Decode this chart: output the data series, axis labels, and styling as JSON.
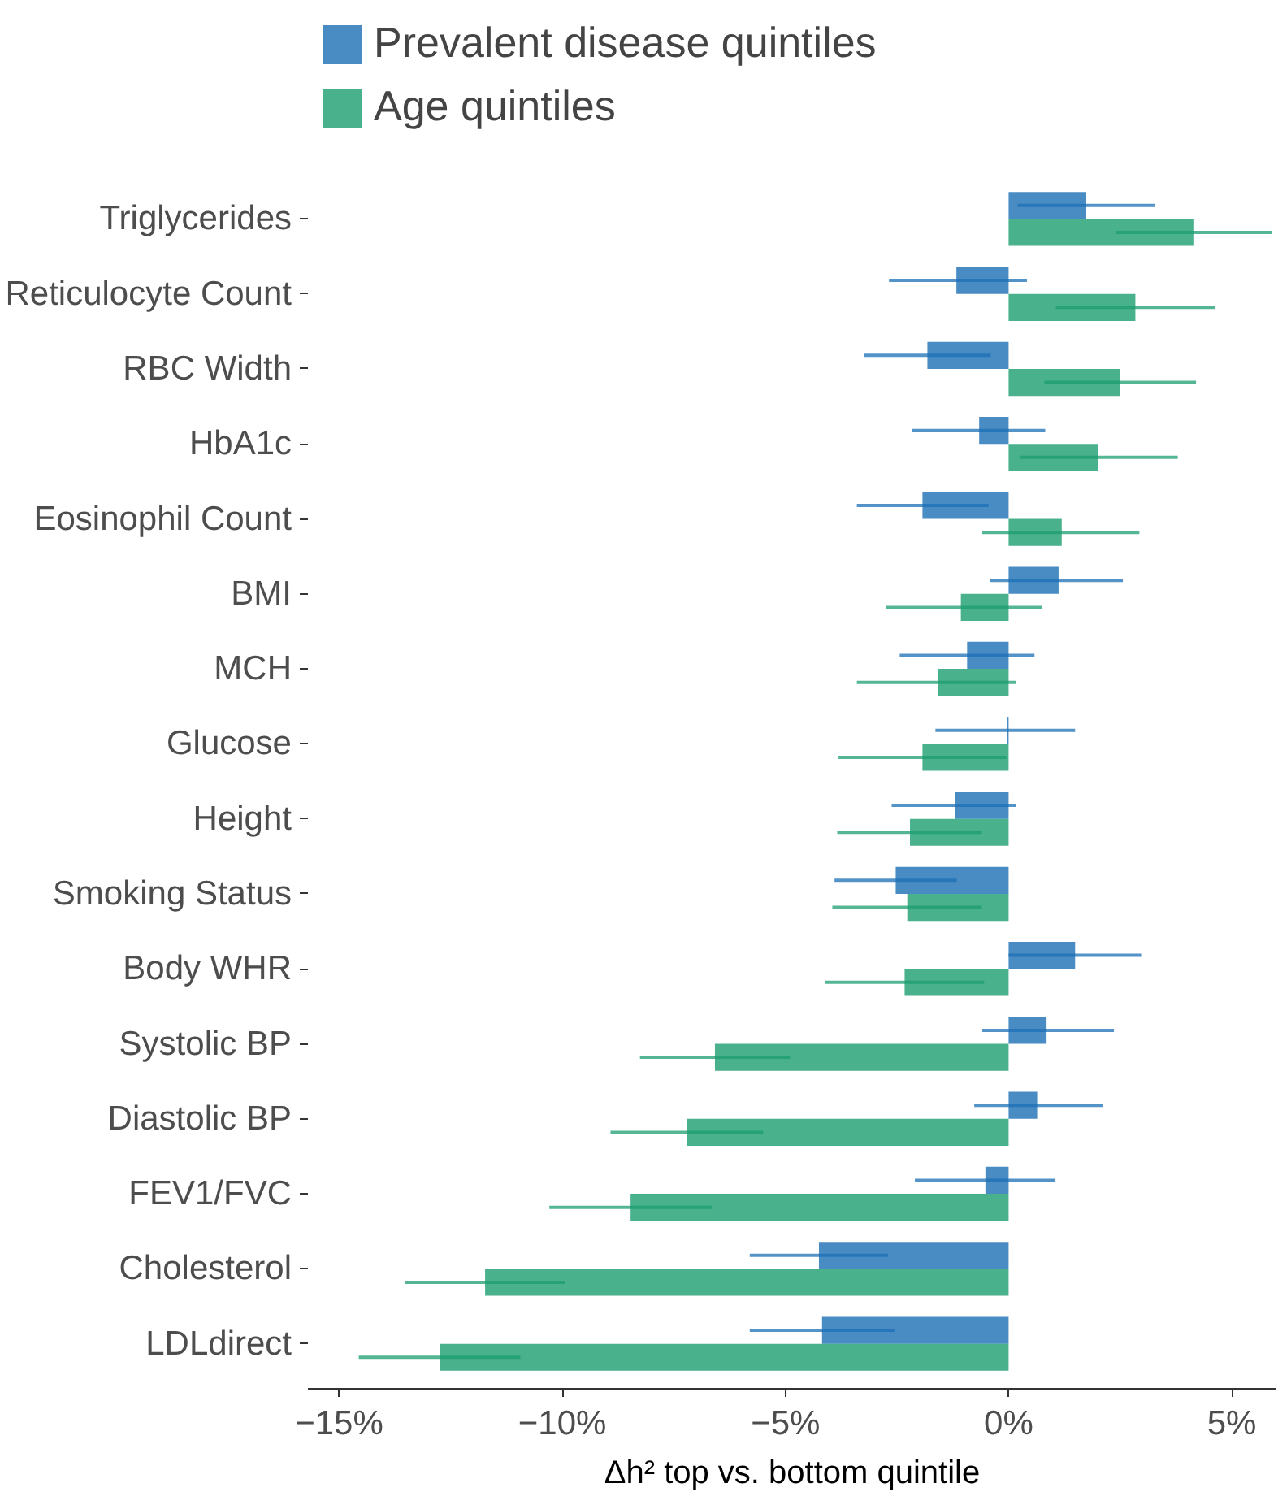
{
  "chart_data": {
    "type": "bar",
    "orientation": "horizontal",
    "xlabel": "Δh² top vs. bottom quintile",
    "categories": [
      "Triglycerides",
      "Reticulocyte Count",
      "RBC Width",
      "HbA1c",
      "Eosinophil Count",
      "BMI",
      "MCH",
      "Glucose",
      "Height",
      "Smoking Status",
      "Body WHR",
      "Systolic BP",
      "Diastolic BP",
      "FEV1/FVC",
      "Cholesterol",
      "LDLdirect"
    ],
    "series": [
      {
        "name": "Prevalent disease quintiles",
        "color": "#1b6fb5",
        "values": [
          1.74,
          -1.17,
          -1.82,
          -0.66,
          -1.93,
          1.12,
          -0.93,
          -0.04,
          -1.2,
          -2.53,
          1.49,
          0.85,
          0.64,
          -0.52,
          -4.25,
          -4.18
        ],
        "errors": [
          [
            0.2,
            3.27
          ],
          [
            -2.68,
            0.41
          ],
          [
            -3.23,
            -0.4
          ],
          [
            -2.17,
            0.82
          ],
          [
            -3.4,
            -0.45
          ],
          [
            -0.42,
            2.56
          ],
          [
            -2.44,
            0.58
          ],
          [
            -1.64,
            1.49
          ],
          [
            -2.62,
            0.16
          ],
          [
            -3.9,
            -1.16
          ],
          [
            0.0,
            2.97
          ],
          [
            -0.59,
            2.36
          ],
          [
            -0.77,
            2.12
          ],
          [
            -2.1,
            1.05
          ],
          [
            -5.8,
            -2.7
          ],
          [
            -5.8,
            -2.56
          ]
        ]
      },
      {
        "name": "Age quintiles",
        "color": "#1b9e6f",
        "values": [
          4.14,
          2.84,
          2.49,
          2.01,
          1.19,
          -1.07,
          -1.59,
          -1.93,
          -2.21,
          -2.27,
          -2.33,
          -6.58,
          -7.21,
          -8.47,
          -11.73,
          -12.75
        ],
        "errors": [
          [
            2.4,
            5.9
          ],
          [
            1.06,
            4.62
          ],
          [
            0.8,
            4.2
          ],
          [
            0.25,
            3.79
          ],
          [
            -0.59,
            2.93
          ],
          [
            -2.74,
            0.74
          ],
          [
            -3.4,
            0.16
          ],
          [
            -3.81,
            -0.05
          ],
          [
            -3.84,
            -0.6
          ],
          [
            -3.95,
            -0.6
          ],
          [
            -4.11,
            -0.55
          ],
          [
            -8.26,
            -4.9
          ],
          [
            -8.92,
            -5.5
          ],
          [
            -10.29,
            -6.65
          ],
          [
            -13.53,
            -9.93
          ],
          [
            -14.56,
            -10.94
          ]
        ]
      }
    ],
    "xlim": [
      -15.7,
      6
    ],
    "xticks": [
      {
        "value": -15,
        "label": "−15%"
      },
      {
        "value": -10,
        "label": "−10%"
      },
      {
        "value": -5,
        "label": "−5%"
      },
      {
        "value": 0,
        "label": "0%"
      },
      {
        "value": 5,
        "label": "5%"
      }
    ],
    "grid": false,
    "legend": "top"
  }
}
